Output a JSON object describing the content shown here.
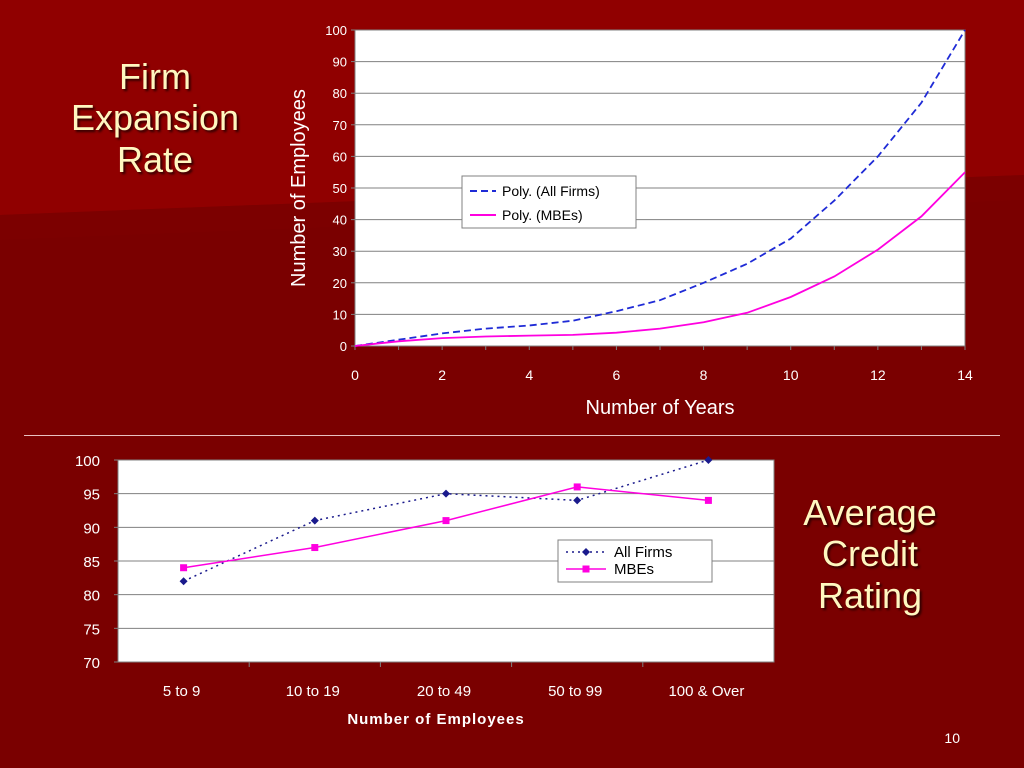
{
  "slide": {
    "title_top": [
      "Firm",
      "Expansion",
      "Rate"
    ],
    "title_bottom": [
      "Average",
      "Credit",
      "Rating"
    ],
    "page_number": "10",
    "colors": {
      "background": "#7a0000",
      "title": "#fff7c0",
      "plot_bg": "#ffffff",
      "all_firms": "#1f2bd6",
      "mbes": "#ff00e0"
    }
  },
  "chart_data": [
    {
      "type": "line",
      "xlabel": "Number of Years",
      "ylabel": "Number of Employees",
      "xlim": [
        0,
        14
      ],
      "ylim": [
        0,
        100
      ],
      "xticks": [
        0,
        2,
        4,
        6,
        8,
        10,
        12,
        14
      ],
      "yticks": [
        0,
        10,
        20,
        30,
        40,
        50,
        60,
        70,
        80,
        90,
        100
      ],
      "grid": true,
      "legend": "center",
      "series": [
        {
          "name": "Poly. (All Firms)",
          "style": "dashed",
          "color": "#1f2bd6",
          "x": [
            0,
            1,
            2,
            3,
            4,
            5,
            6,
            7,
            8,
            9,
            10,
            11,
            12,
            13,
            14
          ],
          "values": [
            0,
            2,
            4,
            5.5,
            6.5,
            8,
            11,
            14.5,
            20,
            26,
            34,
            46,
            60,
            77,
            100
          ]
        },
        {
          "name": "Poly. (MBEs)",
          "style": "solid",
          "color": "#ff00e0",
          "x": [
            0,
            1,
            2,
            3,
            4,
            5,
            6,
            7,
            8,
            9,
            10,
            11,
            12,
            13,
            14
          ],
          "values": [
            0,
            1.5,
            2.5,
            3,
            3.3,
            3.5,
            4.2,
            5.5,
            7.5,
            10.5,
            15.5,
            22,
            30.5,
            41,
            55
          ]
        }
      ]
    },
    {
      "type": "line",
      "xlabel": "Number of Employees",
      "ylabel": "",
      "categories": [
        "5 to 9",
        "10 to 19",
        "20 to 49",
        "50 to 99",
        "100 & Over"
      ],
      "ylim": [
        70,
        100
      ],
      "yticks": [
        70,
        75,
        80,
        85,
        90,
        95,
        100
      ],
      "grid": true,
      "legend": "right",
      "series": [
        {
          "name": "All Firms",
          "style": "dotted",
          "marker": "diamond",
          "color": "#1a1a8c",
          "values": [
            82,
            91,
            95,
            94,
            100
          ]
        },
        {
          "name": "MBEs",
          "style": "solid",
          "marker": "square",
          "color": "#ff00e0",
          "values": [
            84,
            87,
            91,
            96,
            94
          ]
        }
      ]
    }
  ]
}
